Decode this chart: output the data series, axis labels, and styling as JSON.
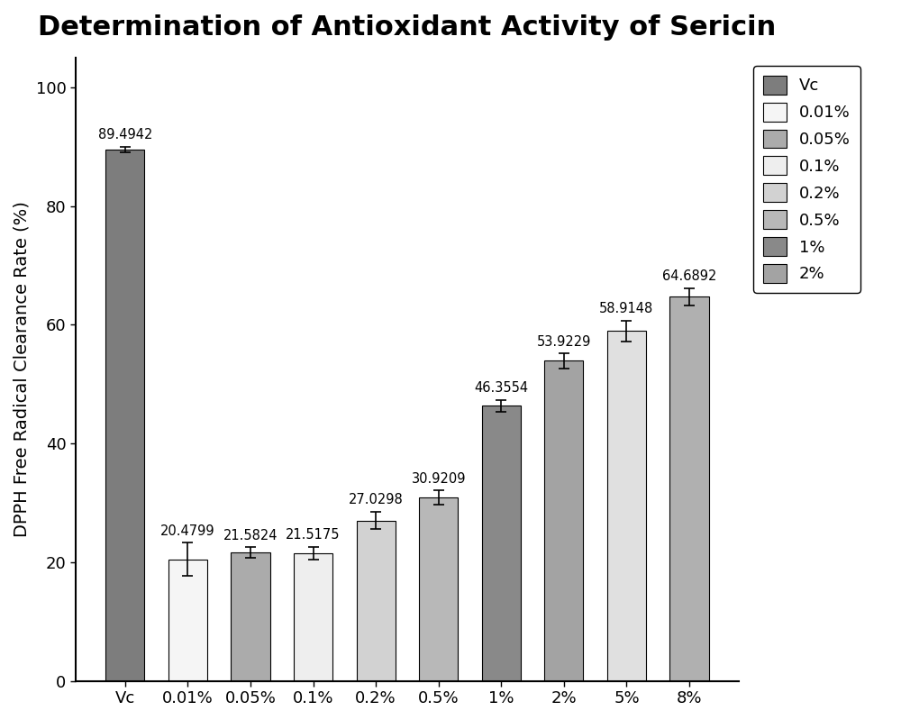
{
  "title": "Determination of Antioxidant Activity of Sericin",
  "ylabel": "DPPH Free Radical Clearance Rate (%)",
  "categories": [
    "Vc",
    "0.01%",
    "0.05%",
    "0.1%",
    "0.2%",
    "0.5%",
    "1%",
    "2%",
    "5%",
    "8%"
  ],
  "values": [
    89.4942,
    20.4799,
    21.5824,
    21.5175,
    27.0298,
    30.9209,
    46.3554,
    53.9229,
    58.9148,
    64.6892
  ],
  "errors": [
    0.5,
    2.8,
    0.9,
    1.1,
    1.5,
    1.2,
    1.0,
    1.3,
    1.8,
    1.5
  ],
  "bar_colors": [
    "#7d7d7d",
    "#f5f5f5",
    "#ababab",
    "#eeeeee",
    "#d2d2d2",
    "#b8b8b8",
    "#898989",
    "#a3a3a3",
    "#e0e0e0",
    "#b0b0b0"
  ],
  "legend_labels": [
    "Vc",
    "0.01%",
    "0.05%",
    "0.1%",
    "0.2%",
    "0.5%",
    "1%",
    "2%"
  ],
  "legend_colors": [
    "#7d7d7d",
    "#f5f5f5",
    "#ababab",
    "#eeeeee",
    "#d2d2d2",
    "#b8b8b8",
    "#898989",
    "#a3a3a3"
  ],
  "ylim": [
    0,
    105
  ],
  "yticks": [
    0,
    20,
    40,
    60,
    80,
    100
  ],
  "title_fontsize": 22,
  "label_fontsize": 14,
  "tick_fontsize": 13,
  "annot_fontsize": 10.5,
  "legend_fontsize": 13,
  "bar_width": 0.62,
  "background_color": "#ffffff",
  "edge_color": "#000000"
}
